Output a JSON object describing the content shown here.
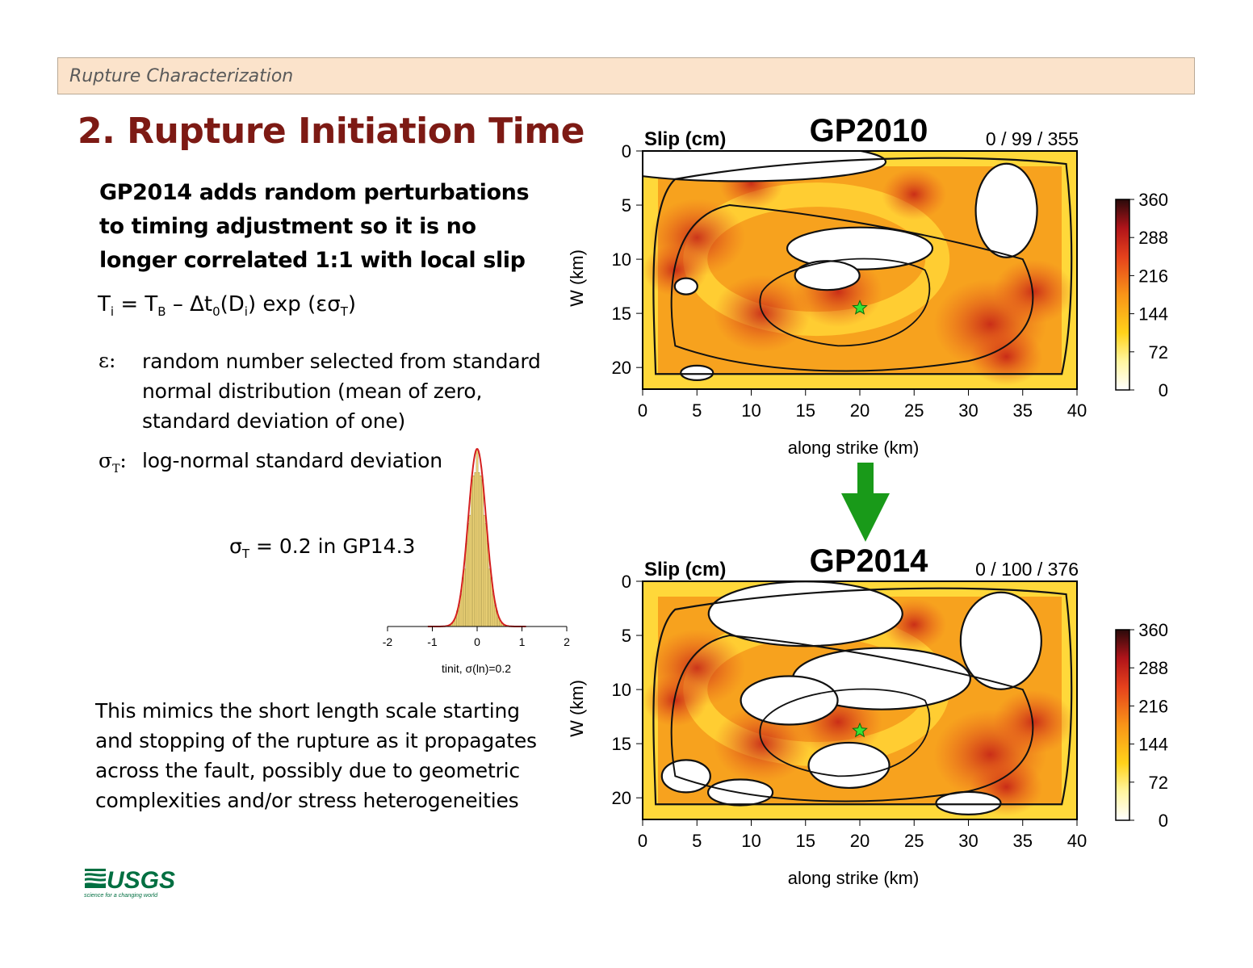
{
  "header": {
    "section": "Rupture Characterization"
  },
  "title": "2. Rupture Initiation Time",
  "intro": "GP2014 adds random perturbations to timing adjustment so it is no longer correlated 1:1 with local slip",
  "formula": {
    "lhs": "T",
    "lhs_sub": "i",
    "eq": " = T",
    "tb_sub": "B",
    "mid": " – Δt",
    "dt_sub": "0",
    "d_open": "(D",
    "d_sub": "i",
    "exp": ") exp (εσ",
    "sig_sub": "T",
    "close": ")"
  },
  "definitions": [
    {
      "symbol": "ε:",
      "text": "random number selected from standard normal distribution (mean of zero, standard deviation of one)"
    },
    {
      "symbol": "σ",
      "symbol_sub": "T",
      "symbol_tail": ":",
      "text": "log-normal standard deviation"
    }
  ],
  "sigma_note": {
    "prefix": "σ",
    "sub": "T",
    "suffix": " = 0.2 in GP14.3"
  },
  "histogram": {
    "xlabel": "tinit, σ(ln)=0.2",
    "ticks": [
      "-2",
      "-1",
      "0",
      "1",
      "2"
    ],
    "sigma": 0.2,
    "xrange": [
      -2,
      2
    ]
  },
  "conclusion": "This mimics the short length scale starting and stopping of the rupture as it propagates across the fault, possibly due to geometric complexities and/or stress heterogeneities",
  "logo": {
    "name": "USGS",
    "tagline": "science for a changing world"
  },
  "maps": [
    {
      "title": "GP2010",
      "label": "Slip (cm)",
      "stats": "0 / 99 / 355",
      "xlabel": "along strike (km)",
      "ylabel": "W (km)",
      "xticks": [
        "0",
        "5",
        "10",
        "15",
        "20",
        "25",
        "30",
        "35",
        "40"
      ],
      "yticks": [
        "0",
        "5",
        "10",
        "15",
        "20"
      ],
      "colorbar": [
        "360",
        "288",
        "216",
        "144",
        "72",
        "0"
      ],
      "hypocenter": {
        "x": 20,
        "y": 14.5
      }
    },
    {
      "title": "GP2014",
      "label": "Slip (cm)",
      "stats": "0 / 100 / 376",
      "xlabel": "along strike (km)",
      "ylabel": "W (km)",
      "xticks": [
        "0",
        "5",
        "10",
        "15",
        "20",
        "25",
        "30",
        "35",
        "40"
      ],
      "yticks": [
        "0",
        "5",
        "10",
        "15",
        "20"
      ],
      "colorbar": [
        "360",
        "288",
        "216",
        "144",
        "72",
        "0"
      ],
      "hypocenter": {
        "x": 20,
        "y": 13.8
      }
    }
  ],
  "colors": {
    "title": "#7d1a14",
    "header_bg": "#fbe3cb",
    "arrow": "#199a19",
    "logo": "#006f41"
  }
}
